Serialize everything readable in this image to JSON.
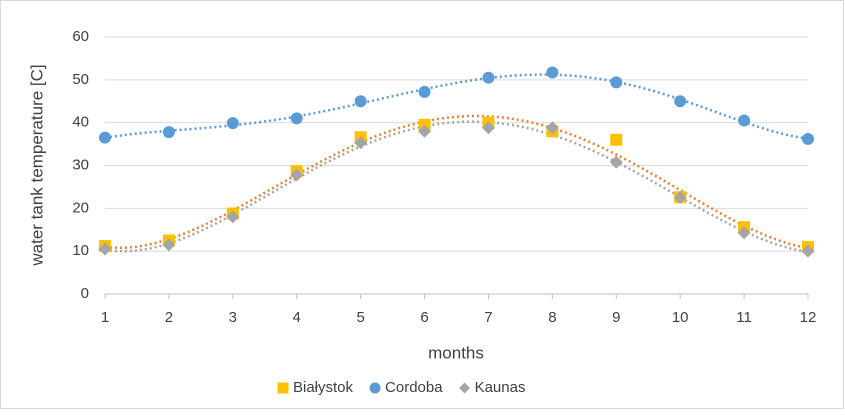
{
  "chart_data": {
    "type": "scatter",
    "x_label": "months",
    "y_label": "water tank temperature [C]",
    "x": [
      1,
      2,
      3,
      4,
      5,
      6,
      7,
      8,
      9,
      10,
      11,
      12
    ],
    "xlim": [
      1,
      12
    ],
    "xticks": [
      1,
      2,
      3,
      4,
      5,
      6,
      7,
      8,
      9,
      10,
      11,
      12
    ],
    "ylim": [
      0,
      60
    ],
    "yticks": [
      0,
      10,
      20,
      30,
      40,
      50,
      60
    ],
    "grid": true,
    "legend": "bottom",
    "series": [
      {
        "name": "Białystok",
        "color": "#FFC000",
        "marker": "square",
        "trend_color": "#ED7D31",
        "values": [
          11.2,
          12.5,
          18.8,
          28.7,
          36.6,
          39.5,
          40,
          38,
          36,
          22.6,
          15.6,
          11
        ]
      },
      {
        "name": "Cordoba",
        "color": "#5B9BD5",
        "marker": "circle",
        "trend_color": "#5B9BD5",
        "values": [
          36.5,
          37.8,
          39.9,
          41,
          45,
          47.2,
          50.5,
          51.7,
          49.4,
          45,
          40.5,
          36.2
        ]
      },
      {
        "name": "Kaunas",
        "color": "#A5A5A5",
        "marker": "diamond",
        "trend_color": "#A5A5A5",
        "values": [
          10.5,
          11.5,
          18,
          27.8,
          35.3,
          38,
          38.8,
          38.8,
          30.8,
          22.5,
          14.3,
          10
        ]
      }
    ]
  }
}
